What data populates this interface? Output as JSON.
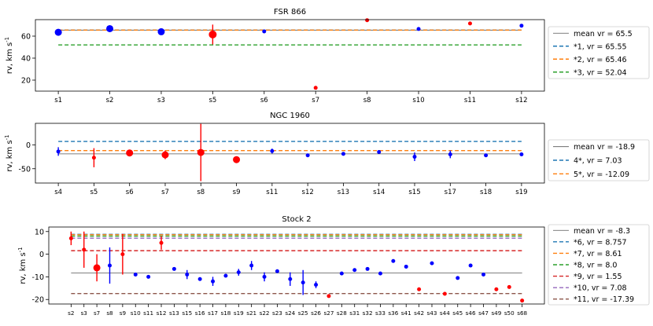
{
  "figure": {
    "type": "multi-panel scatter with error bars"
  },
  "chart_data": [
    {
      "type": "scatter",
      "title": "FSR 866",
      "xlabel": "",
      "ylabel": "rv, km s",
      "ylabel_sup": "-1",
      "ylim": [
        10,
        75
      ],
      "yticks": [
        20,
        40,
        60
      ],
      "categories": [
        "s1",
        "s2",
        "s3",
        "s5",
        "s6",
        "s7",
        "s8",
        "s10",
        "s11",
        "s12"
      ],
      "points": [
        {
          "x": "s1",
          "y": 63.5,
          "err": 0,
          "color": "#0000ff",
          "size": 4.5
        },
        {
          "x": "s2",
          "y": 66.8,
          "err": 0,
          "color": "#0000ff",
          "size": 4.5
        },
        {
          "x": "s3",
          "y": 64.0,
          "err": 0,
          "color": "#0000ff",
          "size": 4.5
        },
        {
          "x": "s5",
          "y": 61.5,
          "err": 9,
          "color": "#ff0000",
          "size": 5
        },
        {
          "x": "s6",
          "y": 64.3,
          "err": 0,
          "color": "#0000ff",
          "size": 2.5
        },
        {
          "x": "s7",
          "y": 13.0,
          "err": 0,
          "color": "#ff0000",
          "size": 2.5
        },
        {
          "x": "s8",
          "y": 74.5,
          "err": 0,
          "color": "#ff0000",
          "size": 2.5
        },
        {
          "x": "s10",
          "y": 66.5,
          "err": 0,
          "color": "#0000ff",
          "size": 2.5
        },
        {
          "x": "s11",
          "y": 71.5,
          "err": 0,
          "color": "#ff0000",
          "size": 2.5
        },
        {
          "x": "s12",
          "y": 69.5,
          "err": 0,
          "color": "#0000ff",
          "size": 2.5
        }
      ],
      "lines": [
        {
          "value": 65.5,
          "style": "solid",
          "color": "#555555",
          "label": "mean vr = 65.5"
        },
        {
          "value": 65.55,
          "style": "dashed",
          "color": "#1f77b4",
          "label": "*1, vr = 65.55"
        },
        {
          "value": 65.46,
          "style": "dashed",
          "color": "#ff7f0e",
          "label": "*2, vr = 65.46"
        },
        {
          "value": 52.04,
          "style": "dashed",
          "color": "#2ca02c",
          "label": "*3, vr = 52.04"
        }
      ]
    },
    {
      "type": "scatter",
      "title": "NGC 1960",
      "xlabel": "",
      "ylabel": "rv, km s",
      "ylabel_sup": "-1",
      "ylim": [
        -80,
        45
      ],
      "yticks": [
        -50,
        0
      ],
      "categories": [
        "s4",
        "s5",
        "s6",
        "s7",
        "s8",
        "s9",
        "s11",
        "s12",
        "s13",
        "s14",
        "s15",
        "s17",
        "s18",
        "s19"
      ],
      "points": [
        {
          "x": "s4",
          "y": -14,
          "err": 9,
          "color": "#0000ff",
          "size": 2.5
        },
        {
          "x": "s5",
          "y": -27,
          "err": 20,
          "color": "#ff0000",
          "size": 2.5
        },
        {
          "x": "s6",
          "y": -17,
          "err": 6,
          "color": "#ff0000",
          "size": 4.5
        },
        {
          "x": "s7",
          "y": -21,
          "err": 9,
          "color": "#ff0000",
          "size": 4.5
        },
        {
          "x": "s8",
          "y": -16,
          "err": 60,
          "color": "#ff0000",
          "size": 4.5
        },
        {
          "x": "s9",
          "y": -31,
          "err": 3,
          "color": "#ff0000",
          "size": 4.5
        },
        {
          "x": "s11",
          "y": -13,
          "err": 5,
          "color": "#0000ff",
          "size": 2.5
        },
        {
          "x": "s12",
          "y": -22,
          "err": 0,
          "color": "#0000ff",
          "size": 2.5
        },
        {
          "x": "s13",
          "y": -19,
          "err": 0,
          "color": "#0000ff",
          "size": 2.5
        },
        {
          "x": "s14",
          "y": -15,
          "err": 0,
          "color": "#0000ff",
          "size": 2.5
        },
        {
          "x": "s15",
          "y": -25,
          "err": 9,
          "color": "#0000ff",
          "size": 2.5
        },
        {
          "x": "s17",
          "y": -20,
          "err": 8,
          "color": "#0000ff",
          "size": 2.5
        },
        {
          "x": "s18",
          "y": -22,
          "err": 0,
          "color": "#0000ff",
          "size": 2.5
        },
        {
          "x": "s19",
          "y": -20,
          "err": 0,
          "color": "#0000ff",
          "size": 2.5
        }
      ],
      "lines": [
        {
          "value": -18.9,
          "style": "solid",
          "color": "#555555",
          "label": "mean vr = -18.9"
        },
        {
          "value": 7.03,
          "style": "dashed",
          "color": "#1f77b4",
          "label": "4*, vr = 7.03"
        },
        {
          "value": -12.09,
          "style": "dashed",
          "color": "#ff7f0e",
          "label": "5*, vr = -12.09"
        }
      ]
    },
    {
      "type": "scatter",
      "title": "Stock 2",
      "xlabel": "",
      "ylabel": "rv, km s",
      "ylabel_sup": "-1",
      "ylim": [
        -22,
        12
      ],
      "yticks": [
        -20,
        -10,
        0,
        10
      ],
      "categories": [
        "s2",
        "s3",
        "s7",
        "s8",
        "s9",
        "s10",
        "s11",
        "s12",
        "s13",
        "s15",
        "s16",
        "s17",
        "s18",
        "s19",
        "s21",
        "s22",
        "s23",
        "s24",
        "s25",
        "s26",
        "s27",
        "s28",
        "s31",
        "s32",
        "s33",
        "s36",
        "s41",
        "s42",
        "s43",
        "s44",
        "s45",
        "s46",
        "s47",
        "s49",
        "s50",
        "s68"
      ],
      "points": [
        {
          "x": "s2",
          "y": 7.0,
          "err": 3,
          "color": "#ff0000",
          "size": 2.5
        },
        {
          "x": "s3",
          "y": 2.0,
          "err": 8,
          "color": "#ff0000",
          "size": 2.5
        },
        {
          "x": "s7",
          "y": -6.0,
          "err": 6,
          "color": "#ff0000",
          "size": 4.5
        },
        {
          "x": "s8",
          "y": -5.0,
          "err": 8,
          "color": "#0000ff",
          "size": 2.5
        },
        {
          "x": "s9",
          "y": 0.0,
          "err": 9,
          "color": "#ff0000",
          "size": 2.5
        },
        {
          "x": "s10",
          "y": -9.0,
          "err": 0,
          "color": "#0000ff",
          "size": 2.5
        },
        {
          "x": "s11",
          "y": -10.0,
          "err": 0,
          "color": "#0000ff",
          "size": 2.5
        },
        {
          "x": "s12",
          "y": 5.0,
          "err": 3,
          "color": "#ff0000",
          "size": 2.5
        },
        {
          "x": "s13",
          "y": -6.5,
          "err": 0,
          "color": "#0000ff",
          "size": 2.5
        },
        {
          "x": "s15",
          "y": -9.0,
          "err": 2,
          "color": "#0000ff",
          "size": 2.5
        },
        {
          "x": "s16",
          "y": -11.0,
          "err": 0,
          "color": "#0000ff",
          "size": 2.5
        },
        {
          "x": "s17",
          "y": -12.0,
          "err": 2,
          "color": "#0000ff",
          "size": 2.5
        },
        {
          "x": "s18",
          "y": -9.5,
          "err": 0,
          "color": "#0000ff",
          "size": 2.5
        },
        {
          "x": "s19",
          "y": -8.0,
          "err": 1.5,
          "color": "#0000ff",
          "size": 2.5
        },
        {
          "x": "s21",
          "y": -5.0,
          "err": 2,
          "color": "#0000ff",
          "size": 2.5
        },
        {
          "x": "s22",
          "y": -10.0,
          "err": 2,
          "color": "#0000ff",
          "size": 2.5
        },
        {
          "x": "s23",
          "y": -7.5,
          "err": 0,
          "color": "#0000ff",
          "size": 2.5
        },
        {
          "x": "s24",
          "y": -11.0,
          "err": 3,
          "color": "#0000ff",
          "size": 2.5
        },
        {
          "x": "s25",
          "y": -12.5,
          "err": 5.5,
          "color": "#0000ff",
          "size": 2.5
        },
        {
          "x": "s26",
          "y": -13.5,
          "err": 1.5,
          "color": "#0000ff",
          "size": 2.5
        },
        {
          "x": "s27",
          "y": -18.5,
          "err": 0,
          "color": "#ff0000",
          "size": 2.5
        },
        {
          "x": "s28",
          "y": -8.5,
          "err": 0,
          "color": "#0000ff",
          "size": 2.5
        },
        {
          "x": "s31",
          "y": -7.0,
          "err": 0,
          "color": "#0000ff",
          "size": 2.5
        },
        {
          "x": "s32",
          "y": -6.5,
          "err": 0,
          "color": "#0000ff",
          "size": 2.5
        },
        {
          "x": "s33",
          "y": -8.5,
          "err": 0,
          "color": "#0000ff",
          "size": 2.5
        },
        {
          "x": "s36",
          "y": -3.0,
          "err": 0,
          "color": "#0000ff",
          "size": 2.5
        },
        {
          "x": "s41",
          "y": -5.5,
          "err": 0,
          "color": "#0000ff",
          "size": 2.5
        },
        {
          "x": "s42",
          "y": -15.5,
          "err": 0,
          "color": "#ff0000",
          "size": 2.5
        },
        {
          "x": "s43",
          "y": -4.0,
          "err": 0,
          "color": "#0000ff",
          "size": 2.5
        },
        {
          "x": "s44",
          "y": -17.5,
          "err": 0,
          "color": "#ff0000",
          "size": 2.5
        },
        {
          "x": "s45",
          "y": -10.5,
          "err": 0,
          "color": "#0000ff",
          "size": 2.5
        },
        {
          "x": "s46",
          "y": -5.0,
          "err": 0,
          "color": "#0000ff",
          "size": 2.5
        },
        {
          "x": "s47",
          "y": -9.0,
          "err": 0,
          "color": "#0000ff",
          "size": 2.5
        },
        {
          "x": "s49",
          "y": -15.5,
          "err": 0,
          "color": "#ff0000",
          "size": 2.5
        },
        {
          "x": "s50",
          "y": -14.5,
          "err": 0,
          "color": "#ff0000",
          "size": 2.5
        },
        {
          "x": "s68",
          "y": -20.5,
          "err": 0,
          "color": "#ff0000",
          "size": 2.5
        }
      ],
      "lines": [
        {
          "value": -8.3,
          "style": "solid",
          "color": "#555555",
          "label": "mean vr = -8.3"
        },
        {
          "value": 8.757,
          "style": "dashed",
          "color": "#1f77b4",
          "label": "*6, vr = 8.757"
        },
        {
          "value": 8.61,
          "style": "dashed",
          "color": "#ff7f0e",
          "label": "*7, vr = 8.61"
        },
        {
          "value": 8.0,
          "style": "dashed",
          "color": "#2ca02c",
          "label": "*8, vr = 8.0"
        },
        {
          "value": 1.55,
          "style": "dashed",
          "color": "#d62728",
          "label": "*9, vr = 1.55"
        },
        {
          "value": 7.08,
          "style": "dashed",
          "color": "#9467bd",
          "label": "*10, vr = 7.08"
        },
        {
          "value": -17.39,
          "style": "dashed",
          "color": "#8c564b",
          "label": "*11, vr = -17.39"
        }
      ]
    }
  ]
}
